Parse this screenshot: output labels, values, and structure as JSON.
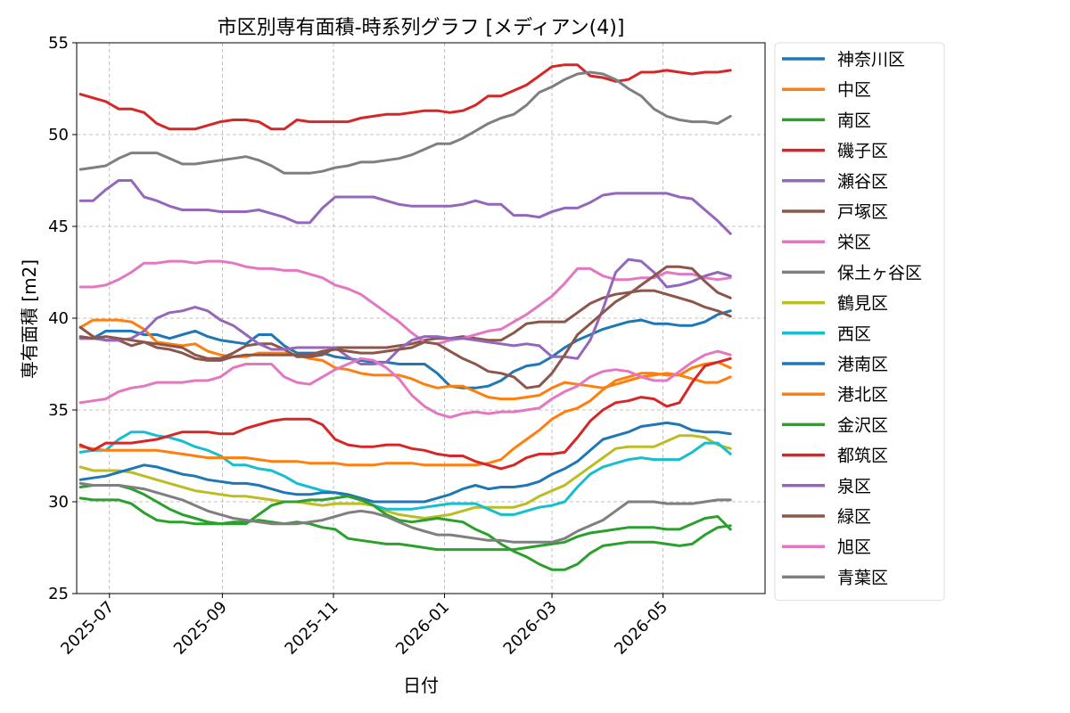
{
  "chart_data": {
    "type": "line",
    "title": "市区別専有面積-時系列グラフ [メディアン(4)]",
    "xlabel": "日付",
    "ylabel": "専有面積 [m2]",
    "ylim": [
      25,
      55
    ],
    "yticks": [
      25,
      30,
      35,
      40,
      45,
      50,
      55
    ],
    "xlim": [
      "2025-06-13",
      "2026-06-26"
    ],
    "xticks": [
      "2025-07",
      "2025-09",
      "2025-11",
      "2026-01",
      "2026-03",
      "2026-05"
    ],
    "grid": true,
    "legend_position": "outside-right",
    "x": [
      "2025-06-15",
      "2025-06-22",
      "2025-06-29",
      "2025-07-06",
      "2025-07-13",
      "2025-07-20",
      "2025-07-27",
      "2025-08-03",
      "2025-08-10",
      "2025-08-17",
      "2025-08-24",
      "2025-08-31",
      "2025-09-07",
      "2025-09-14",
      "2025-09-21",
      "2025-09-28",
      "2025-10-05",
      "2025-10-12",
      "2025-10-19",
      "2025-10-26",
      "2025-11-02",
      "2025-11-09",
      "2025-11-16",
      "2025-11-23",
      "2025-11-30",
      "2025-12-07",
      "2025-12-14",
      "2025-12-21",
      "2025-12-28",
      "2026-01-04",
      "2026-01-11",
      "2026-01-18",
      "2026-01-25",
      "2026-02-01",
      "2026-02-08",
      "2026-02-15",
      "2026-02-22",
      "2026-03-01",
      "2026-03-08",
      "2026-03-15",
      "2026-03-22",
      "2026-03-29",
      "2026-04-05",
      "2026-04-12",
      "2026-04-19",
      "2026-04-26",
      "2026-05-03",
      "2026-05-10",
      "2026-05-17",
      "2026-05-24",
      "2026-05-31",
      "2026-06-07"
    ],
    "series": [
      {
        "name": "神奈川区",
        "color": "#1f77b4",
        "values": [
          38.9,
          38.9,
          39.3,
          39.3,
          39.3,
          39.1,
          39.1,
          38.9,
          39.1,
          39.3,
          39.0,
          38.8,
          38.7,
          38.6,
          39.1,
          39.1,
          38.5,
          38.1,
          38.1,
          38.1,
          37.9,
          37.8,
          37.7,
          37.6,
          37.6,
          37.5,
          37.5,
          37.5,
          37.0,
          36.3,
          36.2,
          36.2,
          36.3,
          36.6,
          37.1,
          37.4,
          37.5,
          37.9,
          38.4,
          38.8,
          39.1,
          39.4,
          39.6,
          39.8,
          39.9,
          39.7,
          39.7,
          39.6,
          39.6,
          39.8,
          40.2,
          40.4
        ]
      },
      {
        "name": "中区",
        "color": "#ff7f0e",
        "values": [
          39.5,
          39.9,
          39.9,
          39.9,
          39.8,
          39.4,
          38.7,
          38.6,
          38.5,
          38.6,
          38.2,
          38.0,
          37.9,
          37.9,
          38.1,
          38.1,
          38.1,
          38.0,
          37.8,
          37.7,
          37.3,
          37.2,
          37.0,
          36.9,
          36.9,
          36.9,
          36.7,
          36.4,
          36.2,
          36.3,
          36.3,
          36.0,
          35.7,
          35.6,
          35.6,
          35.7,
          35.8,
          36.2,
          36.5,
          36.4,
          36.3,
          36.2,
          36.4,
          36.6,
          36.8,
          36.9,
          37.0,
          36.9,
          36.7,
          36.5,
          36.5,
          36.8
        ]
      },
      {
        "name": "南区",
        "color": "#2ca02c",
        "values": [
          30.2,
          30.1,
          30.1,
          30.1,
          29.9,
          29.4,
          29.0,
          28.9,
          28.9,
          28.8,
          28.8,
          28.8,
          28.9,
          28.9,
          29.0,
          28.9,
          28.8,
          28.9,
          28.8,
          28.6,
          28.5,
          28.0,
          27.9,
          27.8,
          27.7,
          27.7,
          27.6,
          27.5,
          27.4,
          27.4,
          27.4,
          27.4,
          27.4,
          27.4,
          27.4,
          27.5,
          27.6,
          27.7,
          27.8,
          28.1,
          28.3,
          28.4,
          28.5,
          28.6,
          28.6,
          28.6,
          28.5,
          28.5,
          28.8,
          29.1,
          29.2,
          28.5
        ]
      },
      {
        "name": "磯子区",
        "color": "#d62728",
        "values": [
          52.2,
          52.0,
          51.8,
          51.4,
          51.4,
          51.2,
          50.6,
          50.3,
          50.3,
          50.3,
          50.5,
          50.7,
          50.8,
          50.8,
          50.7,
          50.3,
          50.3,
          50.8,
          50.7,
          50.7,
          50.7,
          50.7,
          50.9,
          51.0,
          51.1,
          51.1,
          51.2,
          51.3,
          51.3,
          51.2,
          51.3,
          51.6,
          52.1,
          52.1,
          52.4,
          52.7,
          53.2,
          53.7,
          53.8,
          53.8,
          53.2,
          53.1,
          52.9,
          53.0,
          53.4,
          53.4,
          53.5,
          53.4,
          53.3,
          53.4,
          53.4,
          53.5
        ]
      },
      {
        "name": "瀬谷区",
        "color": "#9467bd",
        "values": [
          46.4,
          46.4,
          47.0,
          47.5,
          47.5,
          46.6,
          46.4,
          46.1,
          45.9,
          45.9,
          45.9,
          45.8,
          45.8,
          45.8,
          45.9,
          45.7,
          45.5,
          45.2,
          45.2,
          46.0,
          46.6,
          46.6,
          46.6,
          46.6,
          46.4,
          46.2,
          46.1,
          46.1,
          46.1,
          46.1,
          46.2,
          46.4,
          46.2,
          46.2,
          45.6,
          45.6,
          45.5,
          45.8,
          46.0,
          46.0,
          46.3,
          46.7,
          46.8,
          46.8,
          46.8,
          46.8,
          46.8,
          46.6,
          46.5,
          45.9,
          45.3,
          44.6
        ]
      },
      {
        "name": "戸塚区",
        "color": "#8c564b",
        "values": [
          39.5,
          39.0,
          38.8,
          38.8,
          38.5,
          38.7,
          38.6,
          38.5,
          38.4,
          38.0,
          37.8,
          37.8,
          38.1,
          38.5,
          38.6,
          38.6,
          38.3,
          37.9,
          37.9,
          38.0,
          38.4,
          38.4,
          38.4,
          38.4,
          38.4,
          38.5,
          38.6,
          38.8,
          38.9,
          38.9,
          39.0,
          38.9,
          38.8,
          38.8,
          39.2,
          39.7,
          39.8,
          39.8,
          39.8,
          40.3,
          40.8,
          41.1,
          41.3,
          41.4,
          41.5,
          41.5,
          41.3,
          41.1,
          40.9,
          40.6,
          40.4,
          40.1
        ]
      },
      {
        "name": "栄区",
        "color": "#e377c2",
        "values": [
          41.7,
          41.7,
          41.8,
          42.1,
          42.5,
          43.0,
          43.0,
          43.1,
          43.1,
          43.0,
          43.1,
          43.1,
          43.0,
          42.8,
          42.7,
          42.7,
          42.6,
          42.6,
          42.4,
          42.2,
          41.8,
          41.6,
          41.3,
          40.8,
          40.3,
          39.8,
          39.2,
          38.7,
          38.6,
          38.8,
          38.9,
          39.1,
          39.3,
          39.4,
          39.8,
          40.2,
          40.7,
          41.2,
          41.9,
          42.7,
          42.7,
          42.3,
          42.1,
          42.1,
          42.2,
          42.2,
          42.5,
          42.4,
          42.4,
          42.2,
          42.1,
          42.2
        ]
      },
      {
        "name": "保土ヶ谷区",
        "color": "#7f7f7f",
        "values": [
          48.1,
          48.2,
          48.3,
          48.7,
          49.0,
          49.0,
          49.0,
          48.7,
          48.4,
          48.4,
          48.5,
          48.6,
          48.7,
          48.8,
          48.6,
          48.3,
          47.9,
          47.9,
          47.9,
          48.0,
          48.2,
          48.3,
          48.5,
          48.5,
          48.6,
          48.7,
          48.9,
          49.2,
          49.5,
          49.5,
          49.8,
          50.2,
          50.6,
          50.9,
          51.1,
          51.6,
          52.3,
          52.6,
          53.0,
          53.3,
          53.4,
          53.3,
          53.0,
          52.5,
          52.1,
          51.4,
          51.0,
          50.8,
          50.7,
          50.7,
          50.6,
          51.0
        ]
      },
      {
        "name": "鶴見区",
        "color": "#bcbd22",
        "values": [
          31.9,
          31.7,
          31.7,
          31.7,
          31.6,
          31.4,
          31.2,
          31.0,
          30.8,
          30.6,
          30.5,
          30.4,
          30.3,
          30.3,
          30.2,
          30.1,
          30.0,
          30.0,
          29.9,
          29.8,
          29.9,
          29.9,
          29.9,
          29.8,
          29.5,
          29.3,
          29.2,
          29.1,
          29.2,
          29.3,
          29.5,
          29.7,
          29.7,
          29.7,
          29.7,
          29.9,
          30.3,
          30.6,
          30.9,
          31.4,
          31.9,
          32.4,
          32.9,
          33.0,
          33.0,
          33.0,
          33.3,
          33.6,
          33.6,
          33.5,
          33.1,
          32.9
        ]
      },
      {
        "name": "西区",
        "color": "#17becf",
        "values": [
          32.7,
          32.8,
          32.8,
          33.4,
          33.8,
          33.8,
          33.6,
          33.5,
          33.3,
          33.0,
          32.8,
          32.5,
          32.0,
          32.0,
          31.8,
          31.7,
          31.4,
          31.0,
          30.8,
          30.6,
          30.5,
          30.3,
          30.1,
          29.8,
          29.6,
          29.6,
          29.6,
          29.7,
          29.8,
          29.9,
          29.9,
          29.9,
          29.6,
          29.3,
          29.3,
          29.5,
          29.7,
          29.8,
          30.0,
          30.8,
          31.5,
          31.9,
          32.1,
          32.3,
          32.4,
          32.3,
          32.3,
          32.3,
          32.7,
          33.2,
          33.2,
          32.6
        ]
      },
      {
        "name": "港南区",
        "color": "#1f77b4",
        "values": [
          31.2,
          31.3,
          31.4,
          31.6,
          31.8,
          32.0,
          31.9,
          31.7,
          31.5,
          31.4,
          31.2,
          31.1,
          31.0,
          31.0,
          30.9,
          30.7,
          30.5,
          30.4,
          30.4,
          30.5,
          30.5,
          30.4,
          30.2,
          30.0,
          30.0,
          30.0,
          30.0,
          30.0,
          30.2,
          30.4,
          30.7,
          30.9,
          30.7,
          30.8,
          30.8,
          30.9,
          31.1,
          31.5,
          31.8,
          32.2,
          32.8,
          33.4,
          33.6,
          33.8,
          34.1,
          34.2,
          34.3,
          34.2,
          33.9,
          33.8,
          33.8,
          33.7
        ]
      },
      {
        "name": "港北区",
        "color": "#ff7f0e",
        "values": [
          33.0,
          32.9,
          32.8,
          32.8,
          32.8,
          32.8,
          32.8,
          32.7,
          32.6,
          32.5,
          32.4,
          32.4,
          32.4,
          32.4,
          32.3,
          32.2,
          32.2,
          32.2,
          32.1,
          32.1,
          32.1,
          32.0,
          32.0,
          32.0,
          32.1,
          32.1,
          32.1,
          32.0,
          32.0,
          32.0,
          32.0,
          32.0,
          32.1,
          32.3,
          32.9,
          33.4,
          33.9,
          34.5,
          34.9,
          35.1,
          35.5,
          36.1,
          36.6,
          36.8,
          37.0,
          37.0,
          36.9,
          36.9,
          37.3,
          37.5,
          37.6,
          37.3
        ]
      },
      {
        "name": "金沢区",
        "color": "#2ca02c",
        "values": [
          30.8,
          30.9,
          30.9,
          30.9,
          30.7,
          30.4,
          30.0,
          29.6,
          29.3,
          29.1,
          28.9,
          28.8,
          28.8,
          28.8,
          29.3,
          29.8,
          30.0,
          30.0,
          30.1,
          30.1,
          30.2,
          30.3,
          30.1,
          29.8,
          29.3,
          29.0,
          28.9,
          29.0,
          29.1,
          29.0,
          28.9,
          28.5,
          28.2,
          27.7,
          27.3,
          27.0,
          26.6,
          26.3,
          26.3,
          26.6,
          27.2,
          27.6,
          27.7,
          27.8,
          27.8,
          27.8,
          27.7,
          27.6,
          27.7,
          28.2,
          28.6,
          28.7
        ]
      },
      {
        "name": "都筑区",
        "color": "#d62728",
        "values": [
          33.1,
          32.8,
          33.2,
          33.2,
          33.2,
          33.3,
          33.4,
          33.6,
          33.8,
          33.8,
          33.8,
          33.7,
          33.7,
          34.0,
          34.2,
          34.4,
          34.5,
          34.5,
          34.5,
          34.2,
          33.4,
          33.1,
          33.0,
          33.0,
          33.1,
          33.1,
          32.9,
          32.8,
          32.6,
          32.5,
          32.5,
          32.2,
          32.0,
          31.8,
          32.0,
          32.4,
          32.6,
          32.6,
          32.7,
          33.5,
          34.4,
          35.0,
          35.4,
          35.5,
          35.7,
          35.6,
          35.2,
          35.4,
          36.5,
          37.4,
          37.6,
          37.8
        ]
      },
      {
        "name": "泉区",
        "color": "#9467bd",
        "values": [
          38.9,
          38.9,
          38.8,
          38.8,
          38.9,
          39.3,
          40.0,
          40.3,
          40.4,
          40.6,
          40.4,
          39.9,
          39.6,
          39.1,
          38.6,
          38.3,
          38.3,
          38.4,
          38.4,
          38.4,
          38.4,
          37.9,
          37.5,
          37.5,
          37.6,
          38.3,
          38.8,
          39.0,
          39.0,
          38.9,
          38.9,
          38.8,
          38.7,
          38.6,
          38.5,
          38.6,
          38.5,
          37.9,
          37.9,
          37.8,
          38.8,
          40.5,
          42.5,
          43.2,
          43.1,
          42.5,
          41.7,
          41.8,
          42.0,
          42.3,
          42.5,
          42.3
        ]
      },
      {
        "name": "緑区",
        "color": "#8c564b",
        "values": [
          39.0,
          38.9,
          39.0,
          38.9,
          38.8,
          38.7,
          38.4,
          38.3,
          38.1,
          37.8,
          37.7,
          37.7,
          37.9,
          38.0,
          38.0,
          38.0,
          38.0,
          38.0,
          38.0,
          38.2,
          38.3,
          38.2,
          38.1,
          38.1,
          38.2,
          38.3,
          38.4,
          38.7,
          38.6,
          38.2,
          37.8,
          37.5,
          37.1,
          37.0,
          36.8,
          36.2,
          36.3,
          37.0,
          38.0,
          39.1,
          39.7,
          40.3,
          40.9,
          41.3,
          41.8,
          42.3,
          42.8,
          42.8,
          42.7,
          42.0,
          41.4,
          41.1
        ]
      },
      {
        "name": "旭区",
        "color": "#e377c2",
        "values": [
          35.4,
          35.5,
          35.6,
          36.0,
          36.2,
          36.3,
          36.5,
          36.5,
          36.5,
          36.6,
          36.6,
          36.8,
          37.3,
          37.5,
          37.5,
          37.5,
          36.8,
          36.5,
          36.4,
          36.8,
          37.2,
          37.5,
          37.8,
          37.7,
          37.3,
          36.7,
          35.8,
          35.2,
          34.8,
          34.6,
          34.8,
          34.9,
          34.8,
          34.9,
          34.9,
          35.0,
          35.1,
          35.6,
          36.0,
          36.3,
          36.8,
          37.1,
          37.2,
          37.1,
          36.8,
          36.6,
          36.6,
          37.1,
          37.6,
          38.0,
          38.2,
          38.0
        ]
      },
      {
        "name": "青葉区",
        "color": "#7f7f7f",
        "values": [
          31.0,
          30.9,
          30.9,
          30.9,
          30.8,
          30.7,
          30.5,
          30.3,
          30.1,
          29.8,
          29.5,
          29.3,
          29.1,
          29.0,
          28.9,
          28.8,
          28.8,
          28.8,
          28.9,
          29.0,
          29.2,
          29.4,
          29.5,
          29.4,
          29.2,
          28.9,
          28.6,
          28.4,
          28.2,
          28.2,
          28.1,
          28.0,
          27.9,
          27.9,
          27.8,
          27.8,
          27.8,
          27.8,
          28.0,
          28.4,
          28.7,
          29.0,
          29.5,
          30.0,
          30.0,
          30.0,
          29.9,
          29.9,
          29.9,
          30.0,
          30.1,
          30.1
        ]
      }
    ]
  }
}
